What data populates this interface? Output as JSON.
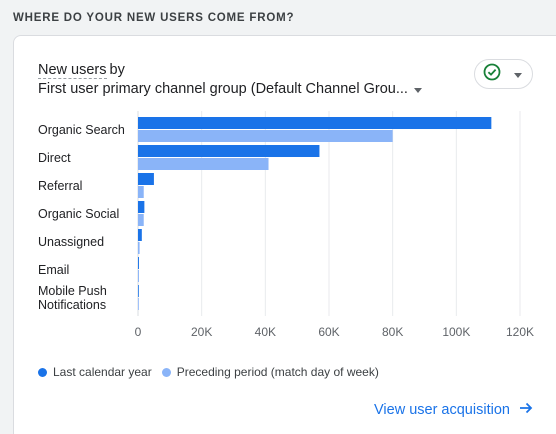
{
  "section_title": "WHERE DO YOUR NEW USERS COME FROM?",
  "card": {
    "metric_label": "New users",
    "by_text": "by",
    "dimension_label": "First user primary channel group (Default Channel Grou...",
    "check_icon": "check-circle-icon",
    "view_link": "View user acquisition",
    "link_icon": "arrow-right-icon"
  },
  "colors": {
    "current": "#1a73e8",
    "preceding": "#8ab4f8",
    "check": "#188038"
  },
  "chart_data": {
    "type": "bar",
    "orientation": "horizontal",
    "categories": [
      "Organic Search",
      "Direct",
      "Referral",
      "Organic Social",
      "Unassigned",
      "Email",
      "Mobile Push Notifications"
    ],
    "series": [
      {
        "name": "Last calendar year",
        "values": [
          111000,
          57000,
          5000,
          2000,
          1200,
          300,
          100
        ]
      },
      {
        "name": "Preceding period (match day of week)",
        "values": [
          80000,
          41000,
          1800,
          1800,
          500,
          300,
          200
        ]
      }
    ],
    "xticks": [
      "0",
      "20K",
      "40K",
      "60K",
      "80K",
      "100K",
      "120K"
    ],
    "xlim": [
      0,
      120000
    ],
    "grid": true,
    "legend_position": "bottom-left"
  }
}
